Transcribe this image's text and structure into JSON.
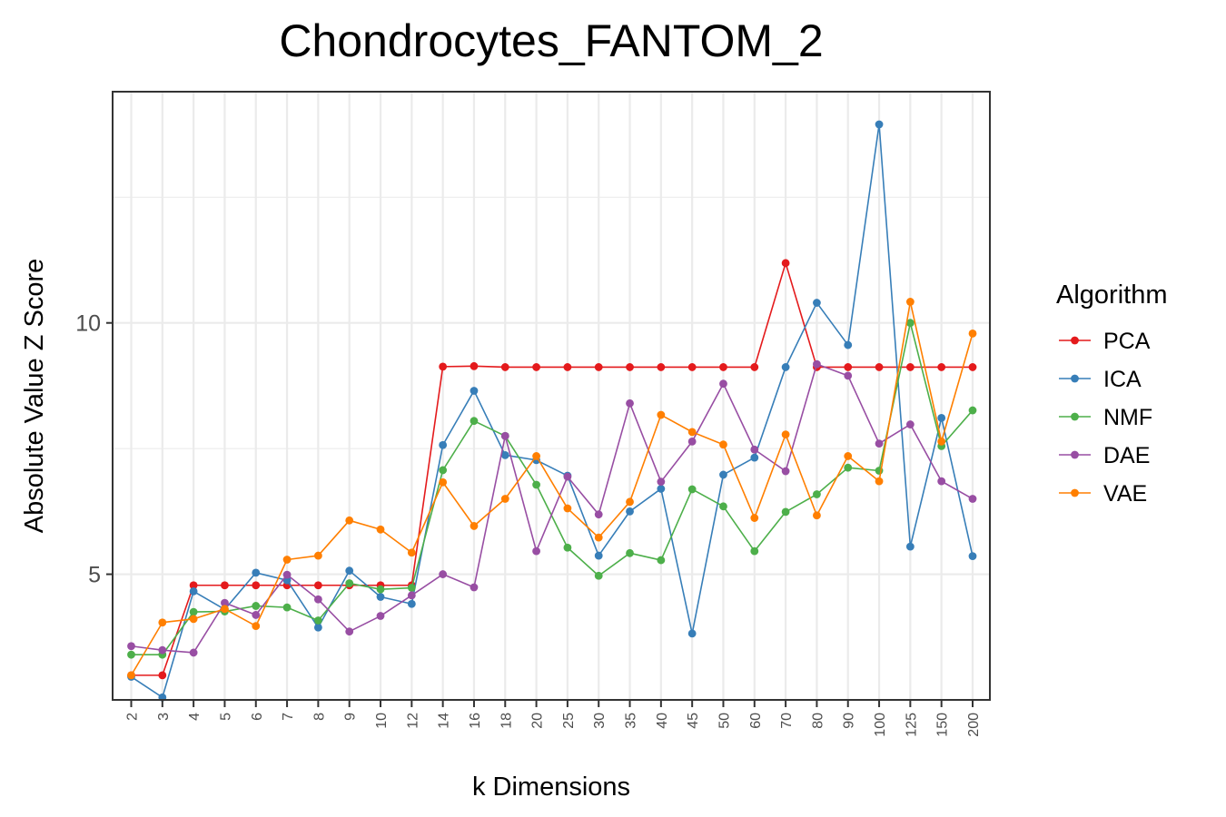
{
  "chart_data": {
    "type": "line",
    "title": "Chondrocytes_FANTOM_2",
    "xlabel": "k Dimensions",
    "ylabel": "Absolute Value Z Score",
    "categories": [
      "2",
      "3",
      "4",
      "5",
      "6",
      "7",
      "8",
      "9",
      "10",
      "12",
      "14",
      "16",
      "18",
      "20",
      "25",
      "30",
      "35",
      "40",
      "45",
      "50",
      "60",
      "70",
      "80",
      "90",
      "100",
      "125",
      "150",
      "200"
    ],
    "yticks": [
      5,
      10
    ],
    "ylim": [
      2.5,
      14.6
    ],
    "grid": true,
    "legend": {
      "title": "Algorithm",
      "position": "right"
    },
    "series": [
      {
        "name": "PCA",
        "color": "#E41A1C",
        "values": [
          2.99,
          2.99,
          4.78,
          4.78,
          4.78,
          4.78,
          4.78,
          4.78,
          4.78,
          4.78,
          9.13,
          9.14,
          9.12,
          9.12,
          9.12,
          9.12,
          9.12,
          9.12,
          9.12,
          9.12,
          9.12,
          11.19,
          9.12,
          9.12,
          9.12,
          9.12,
          9.12,
          9.12
        ]
      },
      {
        "name": "ICA",
        "color": "#377EB8",
        "values": [
          2.96,
          2.55,
          4.66,
          4.3,
          5.03,
          4.88,
          3.94,
          5.07,
          4.55,
          4.41,
          7.57,
          8.65,
          7.37,
          7.27,
          6.96,
          5.37,
          6.25,
          6.7,
          3.82,
          6.98,
          7.32,
          9.12,
          10.4,
          9.56,
          13.95,
          5.55,
          8.11,
          5.36
        ]
      },
      {
        "name": "NMF",
        "color": "#4DAF4A",
        "values": [
          3.4,
          3.4,
          4.25,
          4.26,
          4.37,
          4.34,
          4.08,
          4.82,
          4.7,
          4.73,
          7.07,
          8.05,
          7.75,
          6.78,
          5.53,
          4.97,
          5.42,
          5.28,
          6.69,
          6.35,
          5.46,
          6.24,
          6.59,
          7.12,
          7.06,
          10.0,
          7.55,
          8.26
        ]
      },
      {
        "name": "DAE",
        "color": "#984EA3",
        "values": [
          3.57,
          3.49,
          3.44,
          4.43,
          4.19,
          4.99,
          4.5,
          3.86,
          4.17,
          4.58,
          5.0,
          4.74,
          7.75,
          5.46,
          6.94,
          6.19,
          8.4,
          6.84,
          7.64,
          8.79,
          7.48,
          7.05,
          9.18,
          8.95,
          7.6,
          7.98,
          6.85,
          6.5
        ]
      },
      {
        "name": "VAE",
        "color": "#FF7F00",
        "values": [
          2.99,
          4.04,
          4.11,
          4.31,
          3.97,
          5.29,
          5.37,
          6.07,
          5.89,
          5.43,
          6.83,
          5.96,
          6.5,
          7.35,
          6.31,
          5.73,
          6.44,
          8.17,
          7.83,
          7.58,
          6.12,
          7.78,
          6.17,
          7.35,
          6.85,
          10.42,
          7.64,
          9.79
        ]
      }
    ]
  }
}
